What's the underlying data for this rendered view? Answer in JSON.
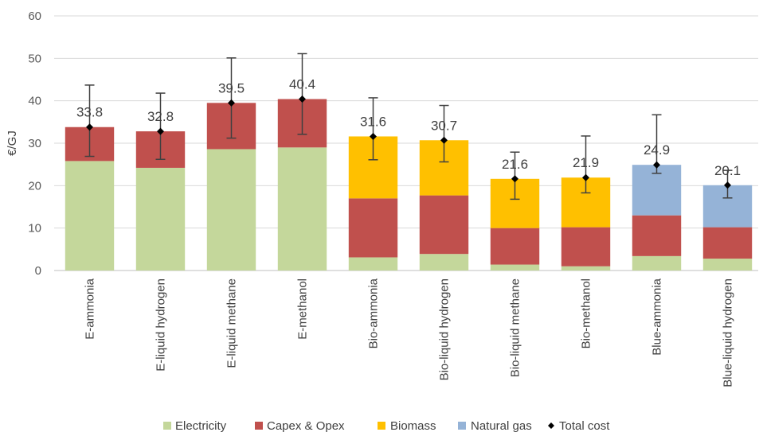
{
  "chart_data": {
    "type": "bar",
    "stacked": true,
    "ylabel": "€/GJ",
    "ylim": [
      0,
      60
    ],
    "yticks": [
      0,
      10,
      20,
      30,
      40,
      50,
      60
    ],
    "grid": true,
    "legend_position": "bottom",
    "categories": [
      "E-ammonia",
      "E-liquid hydrogen",
      "E-liquid methane",
      "E-methanol",
      "Bio-ammonia",
      "Bio-liquid hydrogen",
      "Bio-liquid methane",
      "Bio-methanol",
      "Blue-ammonia",
      "Blue-liquid hydrogen"
    ],
    "series": [
      {
        "name": "Electricity",
        "color": "#c4d79b",
        "values": [
          25.8,
          24.2,
          28.6,
          29.0,
          3.1,
          3.9,
          1.4,
          1.0,
          3.4,
          2.8
        ]
      },
      {
        "name": "Capex & Opex",
        "color": "#c0504d",
        "values": [
          8.0,
          8.6,
          10.9,
          11.4,
          13.9,
          13.8,
          8.6,
          9.2,
          9.6,
          7.4
        ]
      },
      {
        "name": "Biomass",
        "color": "#ffc000",
        "values": [
          0,
          0,
          0,
          0,
          14.6,
          13.0,
          11.6,
          11.7,
          0,
          0
        ]
      },
      {
        "name": "Natural gas",
        "color": "#95b3d7",
        "values": [
          0,
          0,
          0,
          0,
          0,
          0,
          0,
          0,
          11.9,
          9.9
        ]
      }
    ],
    "total_cost": {
      "name": "Total cost",
      "values": [
        33.8,
        32.8,
        39.5,
        40.4,
        31.6,
        30.7,
        21.6,
        21.9,
        24.9,
        20.1
      ],
      "labels": [
        "33.8",
        "32.8",
        "39.5",
        "40.4",
        "31.6",
        "30.7",
        "21.6",
        "21.9",
        "24.9",
        "20.1"
      ],
      "error_low": [
        26.9,
        26.2,
        31.2,
        32.1,
        26.1,
        25.6,
        16.8,
        18.3,
        22.9,
        17.1
      ],
      "error_high": [
        43.7,
        41.8,
        50.1,
        51.1,
        40.7,
        38.9,
        27.9,
        31.7,
        36.7,
        23.6
      ]
    }
  }
}
